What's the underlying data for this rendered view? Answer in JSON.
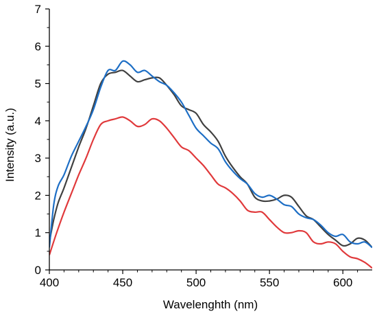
{
  "chart_data": {
    "type": "line",
    "title": "",
    "xlabel": "Wavelenghth (nm)",
    "ylabel": "Intensity (a.u.)",
    "xlim": [
      400,
      620
    ],
    "ylim": [
      0,
      7
    ],
    "xticks": [
      400,
      450,
      500,
      550,
      600
    ],
    "yticks": [
      0,
      1,
      2,
      3,
      4,
      5,
      6,
      7
    ],
    "grid": false,
    "legend": "none",
    "series": [
      {
        "color": "#404040",
        "x": [
          400,
          403,
          406,
          410,
          415,
          420,
          425,
          430,
          435,
          440,
          445,
          450,
          455,
          460,
          465,
          470,
          475,
          480,
          485,
          490,
          495,
          500,
          505,
          510,
          515,
          520,
          525,
          530,
          535,
          540,
          545,
          550,
          555,
          560,
          565,
          570,
          575,
          580,
          585,
          590,
          595,
          600,
          605,
          610,
          615,
          620
        ],
        "y": [
          0.75,
          1.35,
          1.8,
          2.2,
          2.75,
          3.3,
          3.8,
          4.4,
          5.0,
          5.25,
          5.3,
          5.35,
          5.2,
          5.05,
          5.1,
          5.15,
          5.15,
          4.95,
          4.7,
          4.4,
          4.3,
          4.2,
          3.9,
          3.7,
          3.45,
          3.05,
          2.75,
          2.5,
          2.3,
          1.95,
          1.85,
          1.85,
          1.9,
          2.0,
          1.95,
          1.7,
          1.45,
          1.35,
          1.15,
          0.95,
          0.8,
          0.65,
          0.7,
          0.85,
          0.8,
          0.6
        ]
      },
      {
        "color": "#1d6ec5",
        "x": [
          400,
          403,
          406,
          410,
          415,
          420,
          425,
          430,
          435,
          440,
          445,
          450,
          455,
          460,
          465,
          470,
          475,
          480,
          485,
          490,
          495,
          500,
          505,
          510,
          515,
          520,
          525,
          530,
          535,
          540,
          545,
          550,
          555,
          560,
          565,
          570,
          575,
          580,
          585,
          590,
          595,
          600,
          605,
          610,
          615,
          620
        ],
        "y": [
          0.6,
          1.75,
          2.25,
          2.55,
          3.05,
          3.45,
          3.85,
          4.3,
          4.9,
          5.35,
          5.35,
          5.6,
          5.5,
          5.3,
          5.35,
          5.2,
          5.05,
          4.95,
          4.75,
          4.5,
          4.15,
          3.8,
          3.6,
          3.4,
          3.25,
          2.9,
          2.65,
          2.45,
          2.3,
          2.05,
          1.95,
          2.0,
          1.9,
          1.75,
          1.7,
          1.5,
          1.4,
          1.35,
          1.2,
          1.0,
          0.9,
          0.95,
          0.75,
          0.7,
          0.75,
          0.6
        ]
      },
      {
        "color": "#e0393b",
        "x": [
          400,
          405,
          410,
          415,
          420,
          425,
          430,
          435,
          440,
          445,
          450,
          455,
          460,
          465,
          470,
          475,
          480,
          485,
          490,
          495,
          500,
          505,
          510,
          515,
          520,
          525,
          530,
          535,
          540,
          545,
          550,
          555,
          560,
          565,
          570,
          575,
          580,
          585,
          590,
          595,
          600,
          605,
          610,
          615,
          620
        ],
        "y": [
          0.4,
          1.0,
          1.55,
          2.05,
          2.55,
          3.0,
          3.5,
          3.9,
          4.0,
          4.05,
          4.1,
          4.0,
          3.85,
          3.9,
          4.05,
          4.0,
          3.8,
          3.55,
          3.3,
          3.2,
          3.0,
          2.8,
          2.55,
          2.3,
          2.2,
          2.05,
          1.85,
          1.6,
          1.55,
          1.55,
          1.35,
          1.15,
          1.0,
          1.0,
          1.05,
          1.0,
          0.75,
          0.7,
          0.75,
          0.7,
          0.5,
          0.35,
          0.3,
          0.2,
          0.05
        ]
      }
    ]
  }
}
